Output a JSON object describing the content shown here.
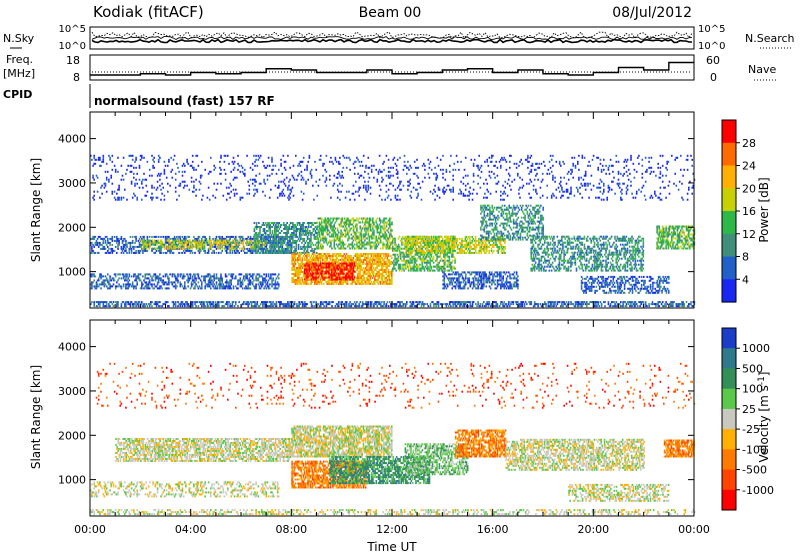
{
  "header": {
    "station": "Kodiak (fitACF)",
    "beam": "Beam 00",
    "date": "08/Jul/2012"
  },
  "aux_panels": {
    "nsky_label": "N.Sky",
    "nsearch_label": "N.Search",
    "nsky_ticks": [
      "10^5",
      "10^0"
    ],
    "nsearch_ticks": [
      "10^5",
      "10^0"
    ],
    "freq_label": "Freq.",
    "freq_unit": "[MHz]",
    "freq_ticks": [
      "18",
      "8"
    ],
    "nave_label": "Nave",
    "nave_ticks": [
      "60",
      "0"
    ],
    "cpid_label": "CPID",
    "cpid_text": "normalsound (fast) 157 RF"
  },
  "chart_data": [
    {
      "type": "heatmap",
      "panel": "power",
      "ylabel": "Slant Range [km]",
      "xlabel": "Time UT",
      "ylim": [
        180,
        4600
      ],
      "xlim": [
        0,
        24
      ],
      "y_ticks": [
        1000,
        2000,
        3000,
        4000
      ],
      "x_ticks": [
        "00:00",
        "04:00",
        "08:00",
        "12:00",
        "16:00",
        "20:00",
        "00:00"
      ],
      "colorbar": {
        "label": "Power [dB]",
        "ticks": [
          "28",
          "24",
          "20",
          "16",
          "12",
          "8",
          "4"
        ],
        "colors": [
          "#ff0000",
          "#ff6a00",
          "#ffb000",
          "#c7d000",
          "#2eb848",
          "#3f8f7a",
          "#2060c8",
          "#1828f0"
        ]
      },
      "bands": [
        {
          "t0": 0.0,
          "t1": 24.0,
          "r0": 200,
          "r1": 330,
          "level": 1,
          "density": 0.55
        },
        {
          "t0": 0.0,
          "t1": 7.5,
          "r0": 600,
          "r1": 950,
          "level": 1,
          "density": 0.45
        },
        {
          "t0": 0.0,
          "t1": 8.0,
          "r0": 1400,
          "r1": 1800,
          "level": 1,
          "density": 0.45
        },
        {
          "t0": 2.0,
          "t1": 7.0,
          "r0": 1500,
          "r1": 1700,
          "level": 4,
          "density": 0.5
        },
        {
          "t0": 6.5,
          "t1": 9.0,
          "r0": 1400,
          "r1": 2100,
          "level": 2,
          "density": 0.55
        },
        {
          "t0": 8.0,
          "t1": 12.0,
          "r0": 700,
          "r1": 1400,
          "level": 5,
          "density": 0.7
        },
        {
          "t0": 8.5,
          "t1": 10.5,
          "r0": 800,
          "r1": 1200,
          "level": 7,
          "density": 0.6
        },
        {
          "t0": 9.0,
          "t1": 12.0,
          "r0": 1500,
          "r1": 2200,
          "level": 3,
          "density": 0.55
        },
        {
          "t0": 12.0,
          "t1": 14.5,
          "r0": 1000,
          "r1": 1800,
          "level": 3,
          "density": 0.55
        },
        {
          "t0": 12.5,
          "t1": 16.5,
          "r0": 1400,
          "r1": 1800,
          "level": 4,
          "density": 0.55
        },
        {
          "t0": 14.0,
          "t1": 17.0,
          "r0": 600,
          "r1": 1000,
          "level": 1,
          "density": 0.5
        },
        {
          "t0": 15.5,
          "t1": 18.0,
          "r0": 1700,
          "r1": 2500,
          "level": 2,
          "density": 0.45
        },
        {
          "t0": 17.5,
          "t1": 22.0,
          "r0": 1000,
          "r1": 1800,
          "level": 2,
          "density": 0.45
        },
        {
          "t0": 19.5,
          "t1": 23.0,
          "r0": 500,
          "r1": 900,
          "level": 1,
          "density": 0.45
        },
        {
          "t0": 22.5,
          "t1": 24.0,
          "r0": 1500,
          "r1": 2000,
          "level": 3,
          "density": 0.6
        },
        {
          "t0": 0.0,
          "t1": 24.0,
          "r0": 2600,
          "r1": 3600,
          "level": 0,
          "density": 0.1
        }
      ]
    },
    {
      "type": "heatmap",
      "panel": "velocity",
      "ylabel": "Slant Range [km]",
      "xlabel": "Time UT",
      "ylim": [
        180,
        4600
      ],
      "xlim": [
        0,
        24
      ],
      "y_ticks": [
        1000,
        2000,
        3000,
        4000
      ],
      "x_ticks": [
        "00:00",
        "04:00",
        "08:00",
        "12:00",
        "16:00",
        "20:00",
        "00:00"
      ],
      "colorbar": {
        "label": "Velocity [m s",
        "label_sup": "-1",
        "label_end": "]",
        "ticks": [
          "1000",
          "500",
          "100",
          "25",
          "-25",
          "-100",
          "-500",
          "-1000"
        ],
        "colors": [
          "#1a3ec8",
          "#2f7a8a",
          "#338f58",
          "#5ac848",
          "#c8c8c0",
          "#ffb000",
          "#ff7a00",
          "#ff4400",
          "#ff0000"
        ]
      },
      "bands": [
        {
          "t0": 0.0,
          "t1": 24.0,
          "r0": 200,
          "r1": 300,
          "level": 4,
          "density": 0.3
        },
        {
          "t0": 0.0,
          "t1": 7.5,
          "r0": 600,
          "r1": 950,
          "level": 4,
          "density": 0.3
        },
        {
          "t0": 1.0,
          "t1": 8.0,
          "r0": 1400,
          "r1": 1900,
          "level": 4,
          "density": 0.6
        },
        {
          "t0": 8.0,
          "t1": 12.0,
          "r0": 1500,
          "r1": 2200,
          "level": 4,
          "density": 0.7
        },
        {
          "t0": 8.0,
          "t1": 11.0,
          "r0": 800,
          "r1": 1400,
          "level": 6,
          "density": 0.65
        },
        {
          "t0": 9.5,
          "t1": 13.5,
          "r0": 900,
          "r1": 1500,
          "level": 2,
          "density": 0.65
        },
        {
          "t0": 12.5,
          "t1": 15.0,
          "r0": 1100,
          "r1": 1800,
          "level": 3,
          "density": 0.55
        },
        {
          "t0": 14.5,
          "t1": 16.5,
          "r0": 1500,
          "r1": 2100,
          "level": 6,
          "density": 0.65
        },
        {
          "t0": 16.5,
          "t1": 22.0,
          "r0": 1200,
          "r1": 1900,
          "level": 4,
          "density": 0.55
        },
        {
          "t0": 19.0,
          "t1": 23.0,
          "r0": 500,
          "r1": 900,
          "level": 4,
          "density": 0.45
        },
        {
          "t0": 22.8,
          "t1": 24.0,
          "r0": 1500,
          "r1": 1900,
          "level": 6,
          "density": 0.7
        },
        {
          "t0": 0.0,
          "t1": 24.0,
          "r0": 2600,
          "r1": 3600,
          "level": 7,
          "density": 0.05
        }
      ]
    }
  ],
  "aux_series": {
    "freq": [
      [
        0,
        10
      ],
      [
        1,
        10
      ],
      [
        2,
        10.5
      ],
      [
        3,
        10
      ],
      [
        4,
        11
      ],
      [
        5,
        10.5
      ],
      [
        6,
        11
      ],
      [
        7,
        12.5
      ],
      [
        8,
        12
      ],
      [
        9,
        11
      ],
      [
        10,
        11
      ],
      [
        11,
        12
      ],
      [
        12,
        10.5
      ],
      [
        13,
        11
      ],
      [
        14,
        12
      ],
      [
        15,
        12.5
      ],
      [
        16,
        11
      ],
      [
        17,
        12
      ],
      [
        18,
        10.5
      ],
      [
        19,
        10
      ],
      [
        20,
        11
      ],
      [
        21,
        13
      ],
      [
        22,
        12
      ],
      [
        23,
        15
      ],
      [
        24,
        15
      ]
    ]
  }
}
